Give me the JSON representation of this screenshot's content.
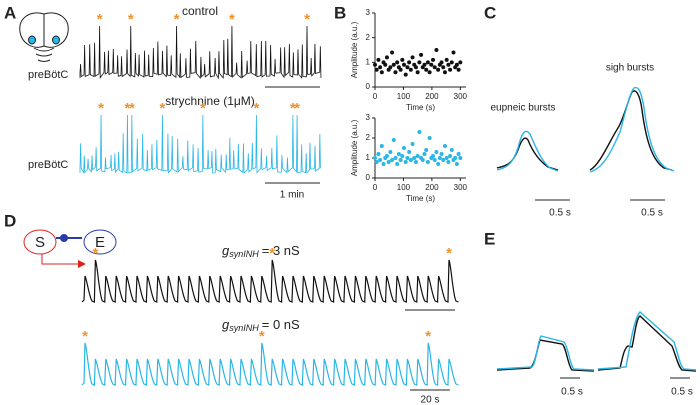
{
  "panels": {
    "a": {
      "label": "A",
      "control": "control",
      "region1": "preBötC",
      "drug": "strychnine (1μM)",
      "region2": "preBötC",
      "scale": "1 min"
    },
    "b": {
      "label": "B"
    },
    "c": {
      "label": "C",
      "eupneic": "eupneic bursts",
      "sigh": "sigh bursts",
      "scale1": "0.5 s",
      "scale2": "0.5 s"
    },
    "d": {
      "label": "D",
      "s": "S",
      "e": "E",
      "g": "g",
      "sub": "synINH",
      "top": "= 3 nS",
      "bottom": "= 0 nS",
      "scale": "20 s"
    },
    "e": {
      "label": "E",
      "scale1": "0.5 s",
      "scale2": "0.5 s"
    },
    "star": "*"
  },
  "chart_data": [
    {
      "type": "scatter",
      "xlabel": "Time (s)",
      "ylabel": "Amplitude (a.u.)",
      "color": "#111111",
      "xlim": [
        0,
        320
      ],
      "ylim": [
        0,
        3
      ],
      "xticks": [
        0,
        100,
        200,
        300
      ],
      "yticks": [
        0,
        1,
        2,
        3
      ],
      "x": [
        0,
        6,
        12,
        18,
        24,
        30,
        36,
        42,
        48,
        54,
        60,
        66,
        72,
        78,
        84,
        90,
        96,
        102,
        108,
        114,
        120,
        126,
        132,
        138,
        144,
        150,
        156,
        162,
        168,
        174,
        180,
        186,
        192,
        198,
        204,
        210,
        216,
        222,
        228,
        234,
        240,
        246,
        252,
        258,
        264,
        270,
        276,
        282,
        288,
        294,
        300
      ],
      "values": [
        0.9,
        0.7,
        1.1,
        0.8,
        0.6,
        1.0,
        0.9,
        1.2,
        0.7,
        0.8,
        1.4,
        0.9,
        0.6,
        1.0,
        0.8,
        0.7,
        1.1,
        0.9,
        0.5,
        0.8,
        1.0,
        0.7,
        1.2,
        0.9,
        0.8,
        0.6,
        1.0,
        1.3,
        0.8,
        0.9,
        0.7,
        1.0,
        0.6,
        0.9,
        1.1,
        0.8,
        1.5,
        0.7,
        0.9,
        1.0,
        0.8,
        0.6,
        1.1,
        0.9,
        0.7,
        1.0,
        1.4,
        0.8,
        0.9,
        0.7,
        1.0
      ]
    },
    {
      "type": "scatter",
      "xlabel": "Time (s)",
      "ylabel": "Amplitude (a.u.)",
      "color": "#29b6e8",
      "xlim": [
        0,
        320
      ],
      "ylim": [
        0,
        3
      ],
      "xticks": [
        0,
        100,
        200,
        300
      ],
      "yticks": [
        0,
        1,
        2,
        3
      ],
      "x": [
        0,
        6,
        12,
        18,
        24,
        30,
        36,
        42,
        48,
        54,
        60,
        66,
        72,
        78,
        84,
        90,
        96,
        102,
        108,
        114,
        120,
        126,
        132,
        138,
        144,
        150,
        156,
        162,
        168,
        174,
        180,
        186,
        192,
        198,
        204,
        210,
        216,
        222,
        228,
        234,
        240,
        246,
        252,
        258,
        264,
        270,
        276,
        282,
        288,
        294,
        300
      ],
      "values": [
        1.0,
        0.8,
        1.2,
        0.9,
        1.6,
        0.7,
        1.0,
        1.1,
        0.8,
        1.3,
        0.9,
        1.9,
        1.0,
        0.7,
        1.2,
        0.9,
        1.1,
        1.5,
        0.8,
        1.0,
        1.3,
        0.9,
        1.7,
        1.0,
        0.8,
        1.1,
        2.3,
        1.0,
        0.9,
        1.2,
        1.4,
        0.8,
        2.0,
        1.0,
        1.1,
        0.9,
        1.3,
        0.7,
        1.0,
        1.2,
        0.9,
        1.6,
        1.0,
        0.8,
        1.1,
        1.4,
        0.9,
        1.0,
        0.7,
        1.2,
        1.0
      ]
    }
  ]
}
